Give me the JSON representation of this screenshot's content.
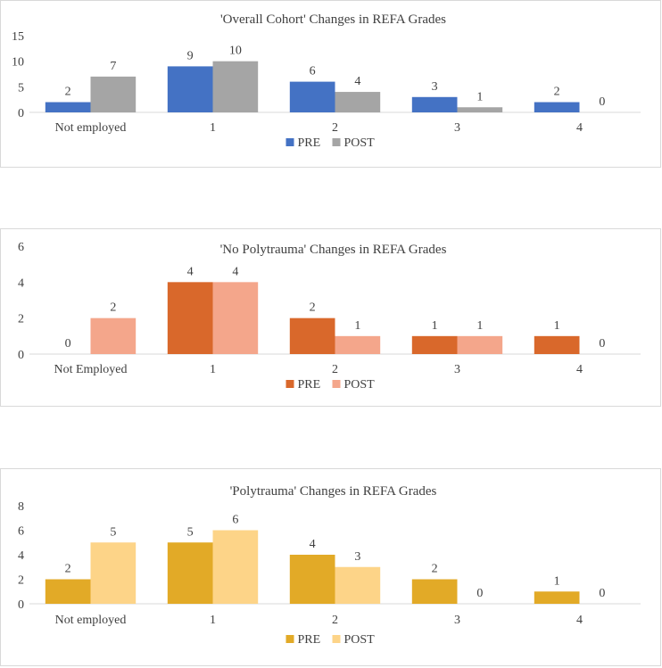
{
  "chart_data": [
    {
      "type": "bar",
      "title": "'Overall Cohort' Changes in REFA Grades",
      "categories": [
        "Not employed",
        "1",
        "2",
        "3",
        "4"
      ],
      "series": [
        {
          "name": "PRE",
          "values": [
            2,
            9,
            6,
            3,
            2
          ],
          "color": "#4472C4"
        },
        {
          "name": "POST",
          "values": [
            7,
            10,
            4,
            1,
            0
          ],
          "color": "#A5A5A5"
        }
      ],
      "yticks": [
        0,
        5,
        10,
        15
      ],
      "ylim": [
        0,
        15
      ],
      "xlabel": "",
      "ylabel": "",
      "grid": false,
      "legend": "bottom"
    },
    {
      "type": "bar",
      "title": "'No Polytrauma' Changes in REFA Grades",
      "categories": [
        "Not Employed",
        "1",
        "2",
        "3",
        "4"
      ],
      "series": [
        {
          "name": "PRE",
          "values": [
            0,
            4,
            2,
            1,
            1
          ],
          "color": "#D9682B"
        },
        {
          "name": "POST",
          "values": [
            2,
            4,
            1,
            1,
            0
          ],
          "color": "#F4A68B"
        }
      ],
      "yticks": [
        0,
        2,
        4,
        6
      ],
      "ylim": [
        0,
        6
      ],
      "xlabel": "",
      "ylabel": "",
      "grid": false,
      "legend": "bottom"
    },
    {
      "type": "bar",
      "title": "'Polytrauma' Changes in REFA Grades",
      "categories": [
        "Not employed",
        "1",
        "2",
        "3",
        "4"
      ],
      "series": [
        {
          "name": "PRE",
          "values": [
            2,
            5,
            4,
            2,
            1
          ],
          "color": "#E2AA27"
        },
        {
          "name": "POST",
          "values": [
            5,
            6,
            3,
            0,
            0
          ],
          "color": "#FDD488"
        }
      ],
      "yticks": [
        0,
        2,
        4,
        6,
        8
      ],
      "ylim": [
        0,
        8
      ],
      "xlabel": "",
      "ylabel": "",
      "grid": false,
      "legend": "bottom"
    }
  ]
}
